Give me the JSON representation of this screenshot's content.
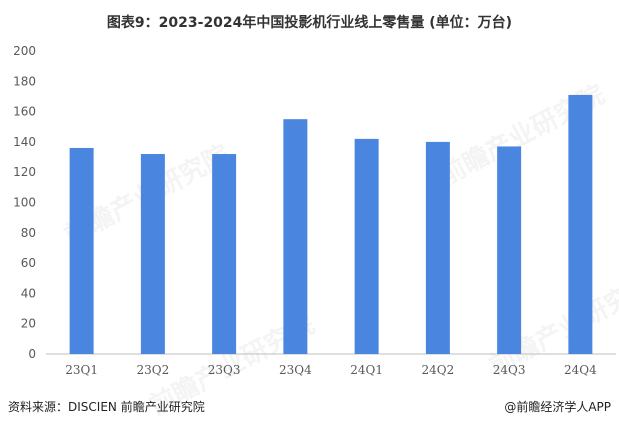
{
  "title": "图表9：2023-2024年中国投影机行业线上零售量 (单位：万台)",
  "source": "资料来源：DISCIEN 前瞻产业研究院",
  "brand": "@前瞻经济学人APP",
  "watermark": "前瞻产业研究院",
  "colors": {
    "bar": "#4a86e0",
    "axis": "#bfbfbf",
    "tick_text": "#595959"
  },
  "chart_data": {
    "type": "bar",
    "title": "图表9：2023-2024年中国投影机行业线上零售量 (单位：万台)",
    "categories": [
      "23Q1",
      "23Q2",
      "23Q3",
      "23Q4",
      "24Q1",
      "24Q2",
      "24Q3",
      "24Q4"
    ],
    "values": [
      136,
      132,
      132,
      155,
      142,
      140,
      137,
      171
    ],
    "ylim": [
      0,
      200
    ],
    "yticks": [
      0,
      20,
      40,
      60,
      80,
      100,
      120,
      140,
      160,
      180,
      200
    ],
    "xlabel": "",
    "ylabel": "",
    "grid": false,
    "legend": "none"
  }
}
